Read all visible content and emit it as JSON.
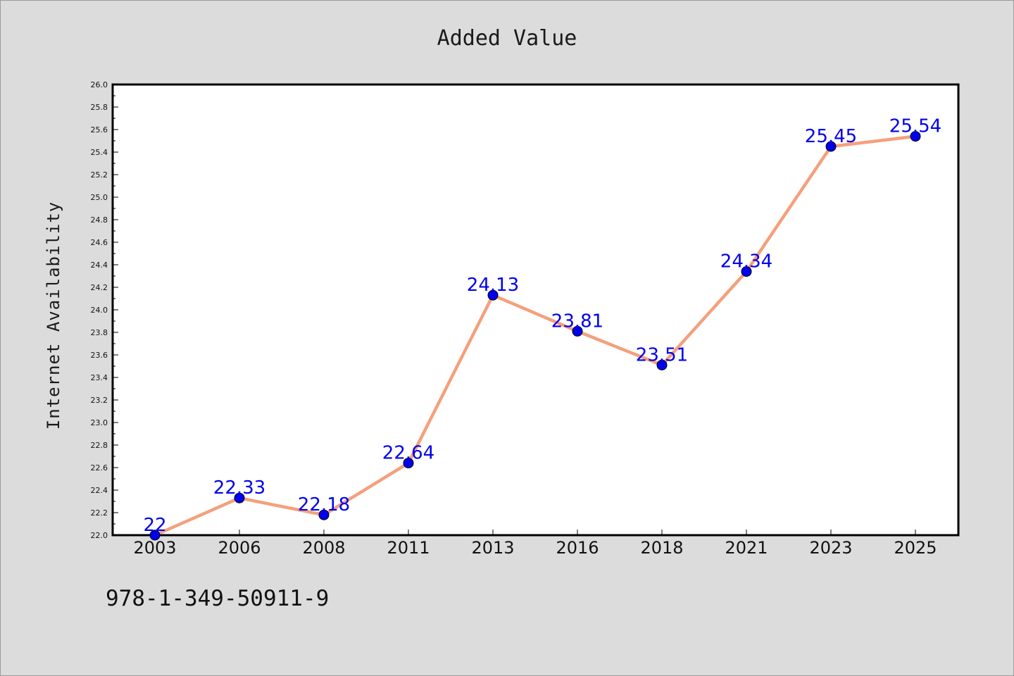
{
  "chart_data": {
    "type": "line",
    "title": "Added Value",
    "xlabel": "",
    "ylabel": "Internet Availability",
    "categories": [
      "2003",
      "2006",
      "2008",
      "2011",
      "2013",
      "2016",
      "2018",
      "2021",
      "2023",
      "2025"
    ],
    "series": [
      {
        "values": [
          22,
          22.33,
          22.18,
          22.64,
          24.13,
          23.81,
          23.51,
          24.34,
          25.45,
          25.54
        ],
        "labels": [
          "22",
          "22.33",
          "22.18",
          "22.64",
          "24.13",
          "23.81",
          "23.51",
          "24.34",
          "25.45",
          "25.54"
        ]
      }
    ],
    "ylim": [
      22.0,
      26.0
    ],
    "yticks": [
      "22.0",
      "22.2",
      "22.4",
      "22.6",
      "22.8",
      "23.0",
      "23.2",
      "23.4",
      "23.6",
      "23.8",
      "24.0",
      "24.2",
      "24.4",
      "24.6",
      "24.8",
      "25.0",
      "25.2",
      "25.4",
      "25.6",
      "25.8",
      "26.0"
    ],
    "grid": false,
    "line_color": "#f4a07c",
    "marker_color": "#0000ee",
    "label_color": "#0000ee"
  },
  "footnote": "978-1-349-50911-9"
}
